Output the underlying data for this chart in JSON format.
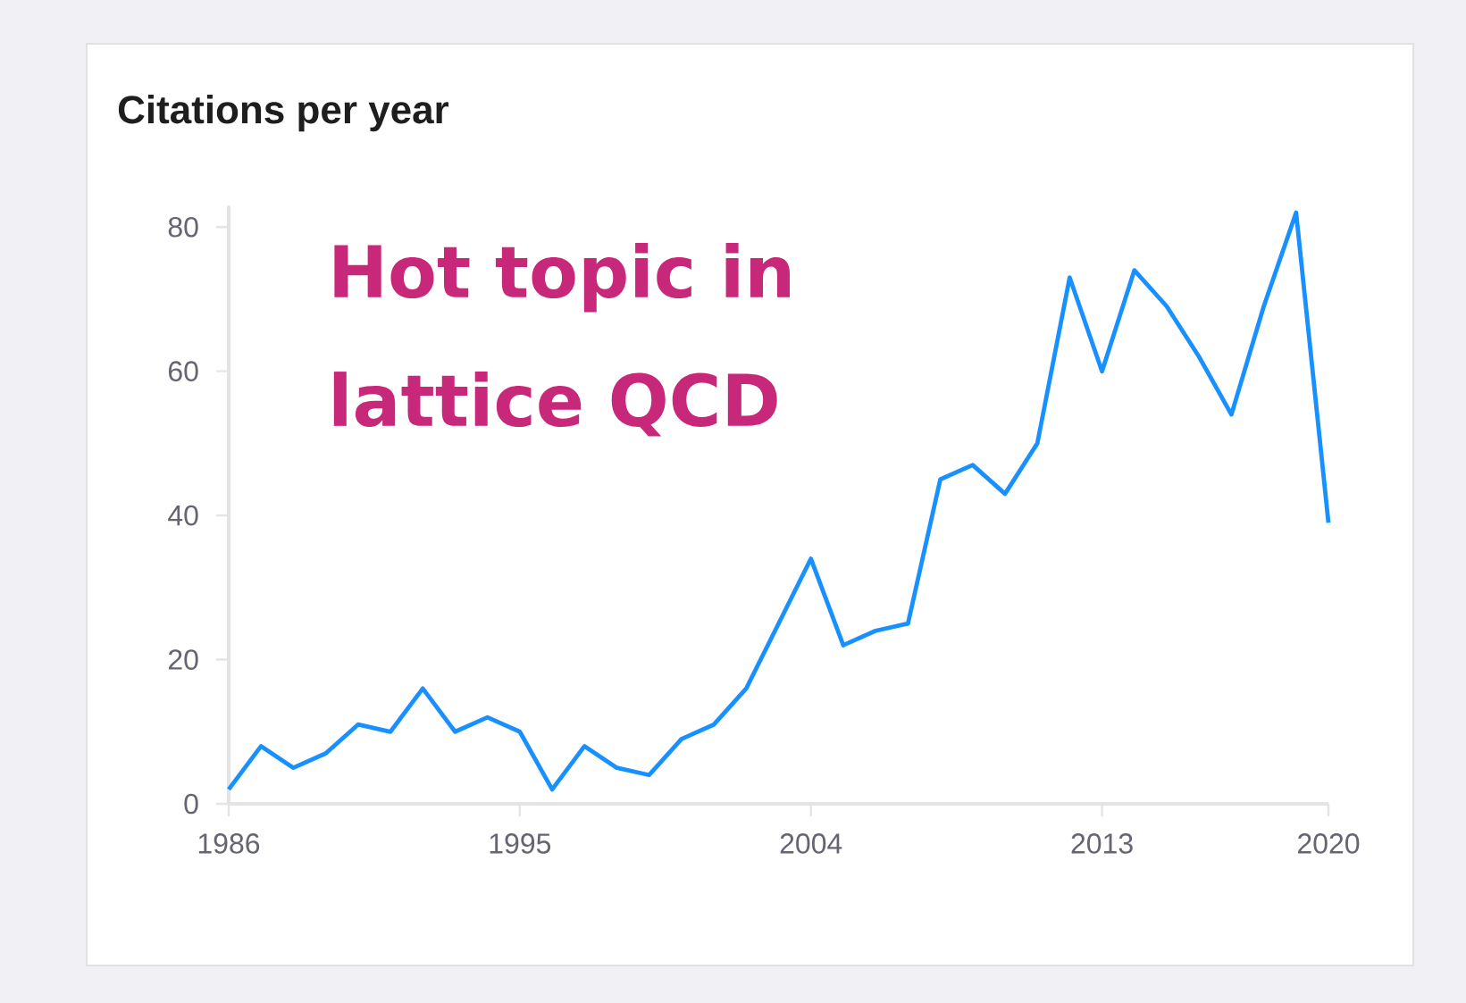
{
  "chart_data": {
    "type": "line",
    "title": "Citations per year",
    "annotations": [
      "Hot topic in lattice QCD"
    ],
    "x": [
      1986,
      1987,
      1988,
      1989,
      1990,
      1991,
      1992,
      1993,
      1994,
      1995,
      1996,
      1997,
      1998,
      1999,
      2000,
      2001,
      2002,
      2003,
      2004,
      2005,
      2006,
      2007,
      2008,
      2009,
      2010,
      2011,
      2012,
      2013,
      2014,
      2015,
      2016,
      2017,
      2018,
      2019,
      2020
    ],
    "values": [
      2,
      8,
      5,
      7,
      11,
      10,
      16,
      10,
      12,
      10,
      2,
      8,
      5,
      4,
      9,
      11,
      16,
      25,
      34,
      22,
      24,
      25,
      45,
      47,
      43,
      50,
      73,
      60,
      74,
      69,
      62,
      54,
      69,
      82,
      39
    ],
    "color": "#1890ff",
    "xlim": [
      1986,
      2020
    ],
    "ylim": [
      0,
      83
    ],
    "xticks": [
      1986,
      1995,
      2004,
      2013,
      2020
    ],
    "yticks": [
      0,
      20,
      40,
      60,
      80
    ],
    "grid": false,
    "marker": "none",
    "line_style": "solid"
  }
}
